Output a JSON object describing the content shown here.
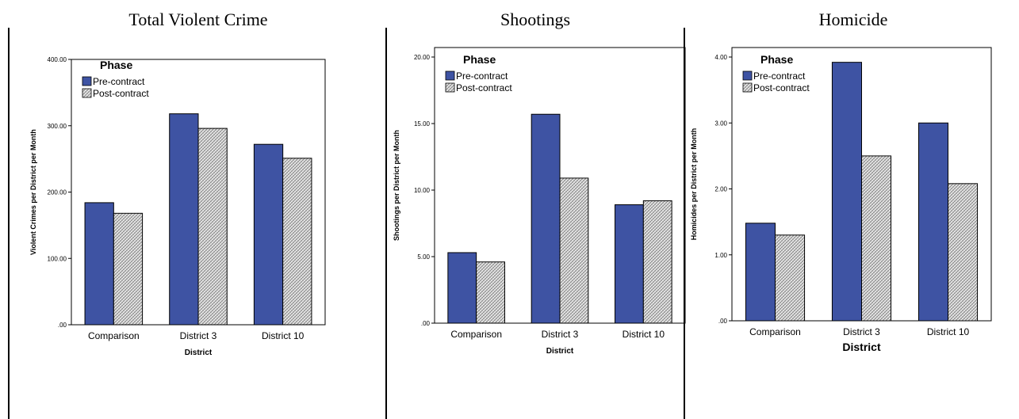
{
  "panels": [
    {
      "title": "Total Violent Crime"
    },
    {
      "title": "Shootings"
    },
    {
      "title": "Homicide"
    }
  ],
  "colors": {
    "pre": "#3e53a3",
    "post_pattern": "crosshatch-gray"
  },
  "chart_data": [
    {
      "type": "bar",
      "title": "",
      "categories": [
        "Comparison",
        "District 3",
        "District 10"
      ],
      "series": [
        {
          "name": "Pre-contract",
          "values": [
            184,
            318,
            272
          ]
        },
        {
          "name": "Post-contract",
          "values": [
            168,
            296,
            251
          ]
        }
      ],
      "xlabel": "District",
      "ylabel": "Violent Crimes per District per Month",
      "ylim": [
        0,
        400
      ],
      "yticks": [
        ".00",
        "100.00",
        "200.00",
        "300.00",
        "400.00"
      ],
      "legend_title": "Phase",
      "legend_position": "top-left",
      "grid": false
    },
    {
      "type": "bar",
      "title": "",
      "categories": [
        "Comparison",
        "District 3",
        "District 10"
      ],
      "series": [
        {
          "name": "Pre-contract",
          "values": [
            5.3,
            15.7,
            8.9
          ]
        },
        {
          "name": "Post-contract",
          "values": [
            4.6,
            10.9,
            9.2
          ]
        }
      ],
      "xlabel": "District",
      "ylabel": "Shootings per District per Month",
      "ylim": [
        0,
        20
      ],
      "yticks": [
        ".00",
        "5.00",
        "10.00",
        "15.00",
        "20.00"
      ],
      "legend_title": "Phase",
      "legend_position": "top-left",
      "grid": false
    },
    {
      "type": "bar",
      "title": "",
      "categories": [
        "Comparison",
        "District 3",
        "District 10"
      ],
      "series": [
        {
          "name": "Pre-contract",
          "values": [
            1.48,
            3.92,
            3.0
          ]
        },
        {
          "name": "Post-contract",
          "values": [
            1.3,
            2.5,
            2.08
          ]
        }
      ],
      "xlabel": "District",
      "ylabel": "Homicides per District per Month",
      "ylim": [
        0,
        4
      ],
      "yticks": [
        ".00",
        "1.00",
        "2.00",
        "3.00",
        "4.00"
      ],
      "legend_title": "Phase",
      "legend_position": "top-left",
      "grid": false
    }
  ]
}
